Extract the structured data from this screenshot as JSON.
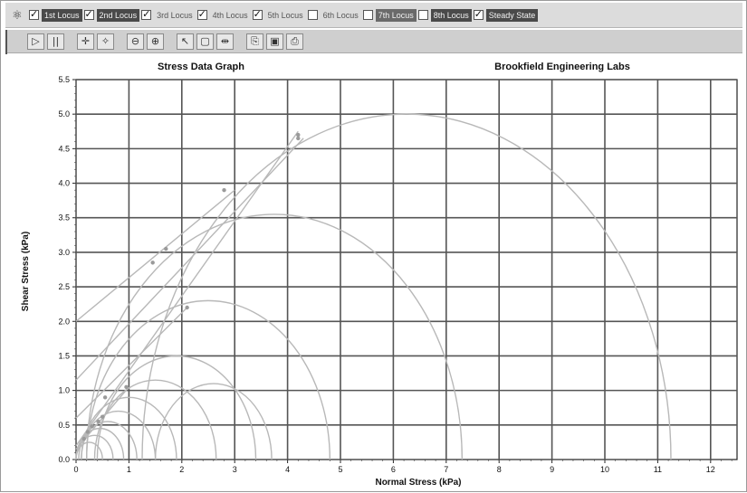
{
  "locus_bar": {
    "items": [
      {
        "label": "1st Locus",
        "checked": true,
        "style": "hl"
      },
      {
        "label": "2nd Locus",
        "checked": true,
        "style": "hl"
      },
      {
        "label": "3rd Locus",
        "checked": true,
        "style": ""
      },
      {
        "label": "4th Locus",
        "checked": true,
        "style": ""
      },
      {
        "label": "5th Locus",
        "checked": true,
        "style": ""
      },
      {
        "label": "6th Locus",
        "checked": false,
        "style": ""
      },
      {
        "label": "7th Locus",
        "checked": false,
        "style": "hl2"
      },
      {
        "label": "8th Locus",
        "checked": false,
        "style": "hl"
      },
      {
        "label": "Steady State",
        "checked": true,
        "style": "hl"
      }
    ]
  },
  "toolbar": {
    "buttons": [
      {
        "name": "play-button",
        "glyph": "▷"
      },
      {
        "name": "pause-button",
        "glyph": "||"
      },
      {
        "name": "pan-button",
        "glyph": "✛"
      },
      {
        "name": "crosshair-button",
        "glyph": "✧"
      },
      {
        "name": "zoom-out-button",
        "glyph": "⊖"
      },
      {
        "name": "zoom-in-button",
        "glyph": "⊕"
      },
      {
        "name": "pointer-button",
        "glyph": "↖"
      },
      {
        "name": "select-box-button",
        "glyph": "▢"
      },
      {
        "name": "fit-width-button",
        "glyph": "⇹"
      },
      {
        "name": "copy-button",
        "glyph": "⎘"
      },
      {
        "name": "save-button",
        "glyph": "▣"
      },
      {
        "name": "print-button",
        "glyph": "⎙"
      }
    ]
  },
  "chart_data": {
    "type": "scatter",
    "title": "Stress Data Graph",
    "subtitle": "Brookfield Engineering Labs",
    "xlabel": "Normal Stress (kPa)",
    "ylabel": "Shear Stress (kPa)",
    "xlim": [
      0,
      12.5
    ],
    "ylim": [
      0,
      5.5
    ],
    "x_ticks": [
      0,
      1,
      2,
      3,
      4,
      5,
      6,
      7,
      8,
      9,
      10,
      11,
      12
    ],
    "y_ticks": [
      0.0,
      0.5,
      1.0,
      1.5,
      2.0,
      2.5,
      3.0,
      3.5,
      4.0,
      4.5,
      5.0,
      5.5
    ],
    "grid": true,
    "line_color": "#b8b8b8",
    "mohr_circles": [
      {
        "center": 0.25,
        "radius": 0.25
      },
      {
        "center": 0.35,
        "radius": 0.35
      },
      {
        "center": 0.45,
        "radius": 0.45
      },
      {
        "center": 0.6,
        "radius": 0.55
      },
      {
        "center": 0.8,
        "radius": 0.7
      },
      {
        "center": 1.0,
        "radius": 0.9
      },
      {
        "center": 1.5,
        "radius": 1.15
      },
      {
        "center": 1.9,
        "radius": 1.5
      },
      {
        "center": 2.6,
        "radius": 1.1
      },
      {
        "center": 2.5,
        "radius": 2.3
      },
      {
        "center": 3.75,
        "radius": 3.55
      },
      {
        "center": 6.25,
        "radius": 5.0
      }
    ],
    "failure_loci": [
      {
        "x": [
          0,
          4.2
        ],
        "y": [
          0.2,
          4.75
        ]
      },
      {
        "x": [
          0,
          4.3
        ],
        "y": [
          1.15,
          4.65
        ]
      },
      {
        "x": [
          0,
          3.0
        ],
        "y": [
          2.0,
          3.9
        ]
      },
      {
        "x": [
          0,
          2.1
        ],
        "y": [
          0.6,
          2.2
        ]
      },
      {
        "x": [
          0,
          1.0
        ],
        "y": [
          0.15,
          1.05
        ]
      }
    ],
    "points": [
      {
        "x": 0.15,
        "y": 0.3
      },
      {
        "x": 0.22,
        "y": 0.4
      },
      {
        "x": 0.3,
        "y": 0.48
      },
      {
        "x": 0.42,
        "y": 0.55
      },
      {
        "x": 0.5,
        "y": 0.62
      },
      {
        "x": 0.55,
        "y": 0.9
      },
      {
        "x": 0.95,
        "y": 1.05
      },
      {
        "x": 1.45,
        "y": 2.85
      },
      {
        "x": 1.7,
        "y": 3.05
      },
      {
        "x": 2.1,
        "y": 2.2
      },
      {
        "x": 2.8,
        "y": 3.9
      },
      {
        "x": 4.2,
        "y": 4.65
      },
      {
        "x": 4.2,
        "y": 4.7
      }
    ]
  }
}
